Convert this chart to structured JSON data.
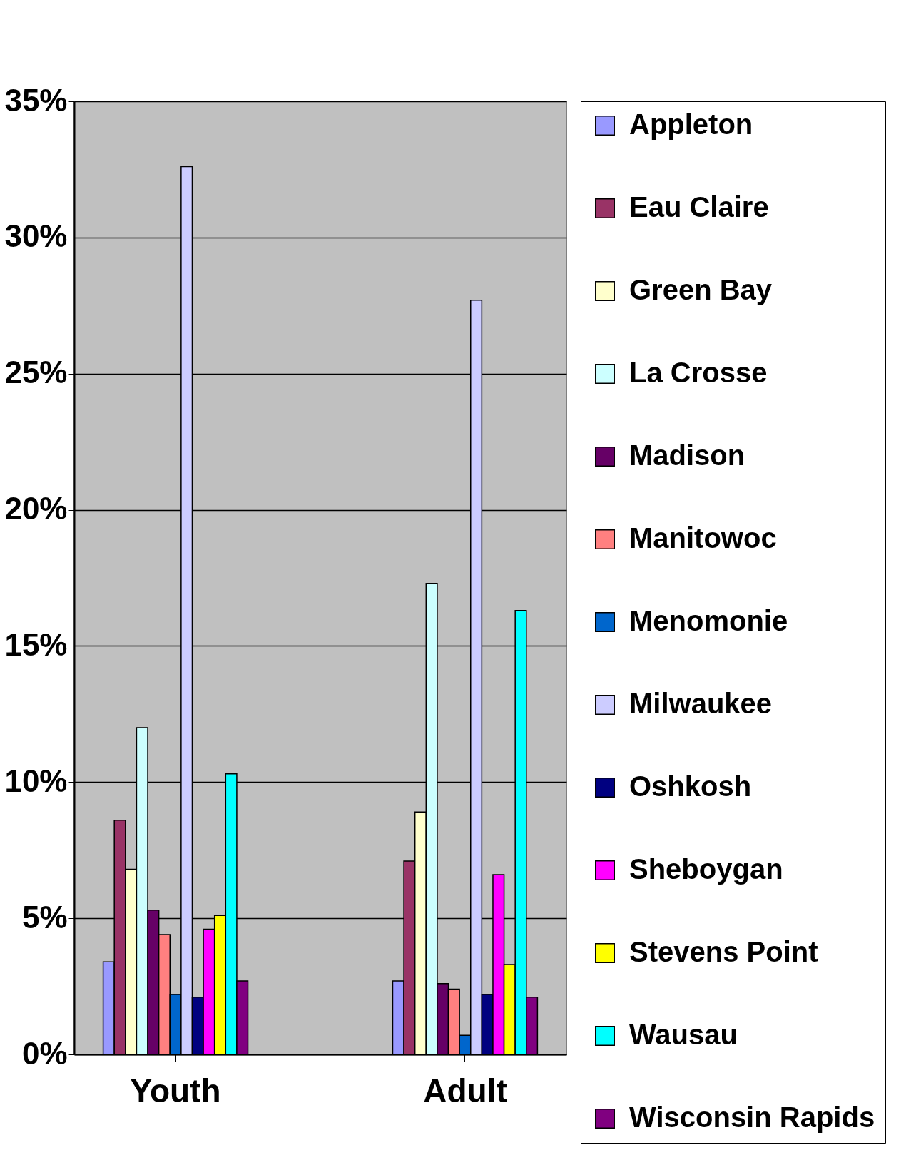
{
  "chart_data": {
    "type": "bar",
    "categories": [
      "Youth",
      "Adult"
    ],
    "series": [
      {
        "name": "Appleton",
        "color": "#9999ff",
        "values": [
          3.4,
          2.7
        ]
      },
      {
        "name": "Eau Claire",
        "color": "#993366",
        "values": [
          8.6,
          7.1
        ]
      },
      {
        "name": "Green Bay",
        "color": "#ffffcc",
        "values": [
          6.8,
          8.9
        ]
      },
      {
        "name": "La Crosse",
        "color": "#ccffff",
        "values": [
          12.0,
          17.3
        ]
      },
      {
        "name": "Madison",
        "color": "#660066",
        "values": [
          5.3,
          2.6
        ]
      },
      {
        "name": "Manitowoc",
        "color": "#ff8080",
        "values": [
          4.4,
          2.4
        ]
      },
      {
        "name": "Menomonie",
        "color": "#0066cc",
        "values": [
          2.2,
          0.7
        ]
      },
      {
        "name": "Milwaukee",
        "color": "#ccccff",
        "values": [
          32.6,
          27.7
        ]
      },
      {
        "name": "Oshkosh",
        "color": "#000080",
        "values": [
          2.1,
          2.2
        ]
      },
      {
        "name": "Sheboygan",
        "color": "#ff00ff",
        "values": [
          4.6,
          6.6
        ]
      },
      {
        "name": "Stevens Point",
        "color": "#ffff00",
        "values": [
          5.1,
          3.3
        ]
      },
      {
        "name": "Wausau",
        "color": "#00ffff",
        "values": [
          10.3,
          16.3
        ]
      },
      {
        "name": "Wisconsin Rapids",
        "color": "#800080",
        "values": [
          2.7,
          2.1
        ]
      }
    ],
    "ylim": [
      0,
      35
    ],
    "yticks": [
      {
        "value": 0,
        "label": "0%"
      },
      {
        "value": 5,
        "label": "5%"
      },
      {
        "value": 10,
        "label": "10%"
      },
      {
        "value": 15,
        "label": "15%"
      },
      {
        "value": 20,
        "label": "20%"
      },
      {
        "value": 25,
        "label": "25%"
      },
      {
        "value": 30,
        "label": "30%"
      },
      {
        "value": 35,
        "label": "35%"
      }
    ],
    "grid": "y",
    "legend": "right"
  }
}
